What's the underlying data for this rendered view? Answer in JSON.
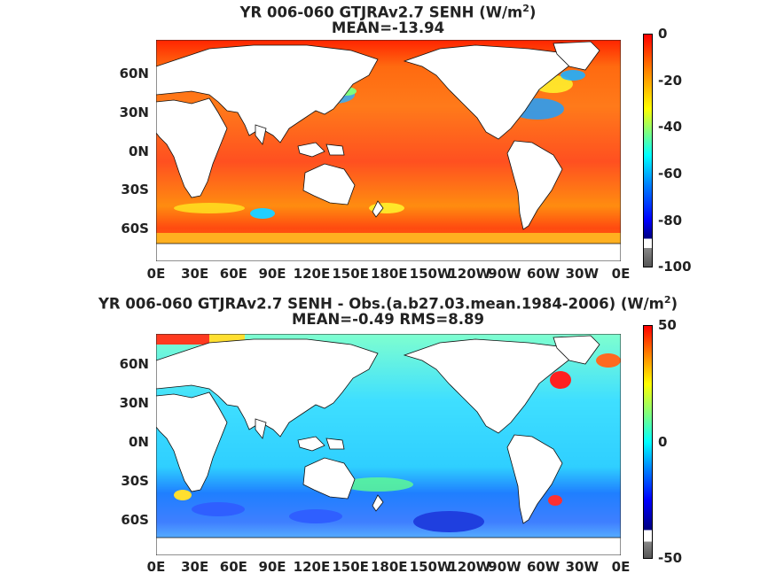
{
  "panel1": {
    "title_main": "YR 006-060 GTJRAv2.7  SENH (W/m",
    "title_sup": "2",
    "title_close": ")",
    "subtitle": "MEAN=-13.94",
    "yticks": [
      "60N",
      "30N",
      "0N",
      "30S",
      "60S"
    ],
    "xticks": [
      "0E",
      "30E",
      "60E",
      "90E",
      "120E",
      "150E",
      "180E",
      "150W",
      "120W",
      "90W",
      "60W",
      "30W",
      "0E"
    ],
    "colorbar_labels": [
      "0",
      "-20",
      "-40",
      "-60",
      "-80",
      "-100"
    ],
    "colorbar_range": [
      -100,
      0
    ]
  },
  "panel2": {
    "title_main": "YR 006-060 GTJRAv2.7 SENH - Obs.(a.b27.03.mean.1984-2006) (W/m",
    "title_sup": "2",
    "title_close": ")",
    "subtitle": "MEAN=-0.49 RMS=8.89",
    "yticks": [
      "60N",
      "30N",
      "0N",
      "30S",
      "60S"
    ],
    "xticks": [
      "0E",
      "30E",
      "60E",
      "90E",
      "120E",
      "150E",
      "180E",
      "150W",
      "120W",
      "90W",
      "60W",
      "30W",
      "0E"
    ],
    "colorbar_labels": [
      "50",
      "0",
      "-50"
    ],
    "colorbar_range": [
      -50,
      50
    ]
  },
  "colors": {
    "land": "#ffffff",
    "missing": "#6e6e6e",
    "jet": [
      "#7f0000",
      "#ff0000",
      "#ff7f00",
      "#ffff00",
      "#7fff7f",
      "#00ffff",
      "#007fff",
      "#0000ff",
      "#00007f"
    ]
  }
}
